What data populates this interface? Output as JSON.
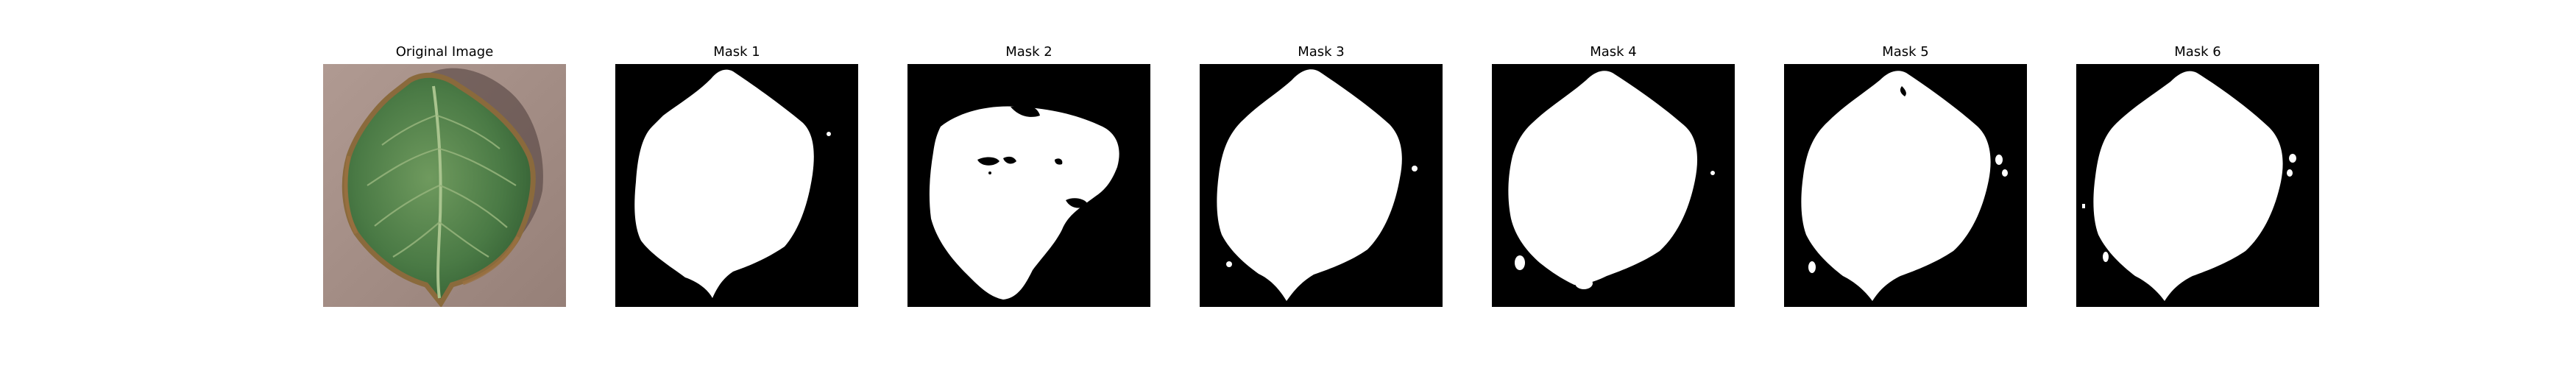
{
  "panels": [
    {
      "title": "Original Image",
      "kind": "photo",
      "subject": "leaf-photo"
    },
    {
      "title": "Mask 1",
      "kind": "mask"
    },
    {
      "title": "Mask 2",
      "kind": "mask"
    },
    {
      "title": "Mask 3",
      "kind": "mask"
    },
    {
      "title": "Mask 4",
      "kind": "mask"
    },
    {
      "title": "Mask 5",
      "kind": "mask"
    },
    {
      "title": "Mask 6",
      "kind": "mask"
    }
  ],
  "colors": {
    "background": "#ffffff",
    "mask_bg": "#000000",
    "mask_fg": "#ffffff",
    "leaf_dark": "#3d6b3a",
    "leaf_light": "#6f9a5e",
    "leaf_edge": "#8a6a3c",
    "ground": "#a38d85"
  }
}
